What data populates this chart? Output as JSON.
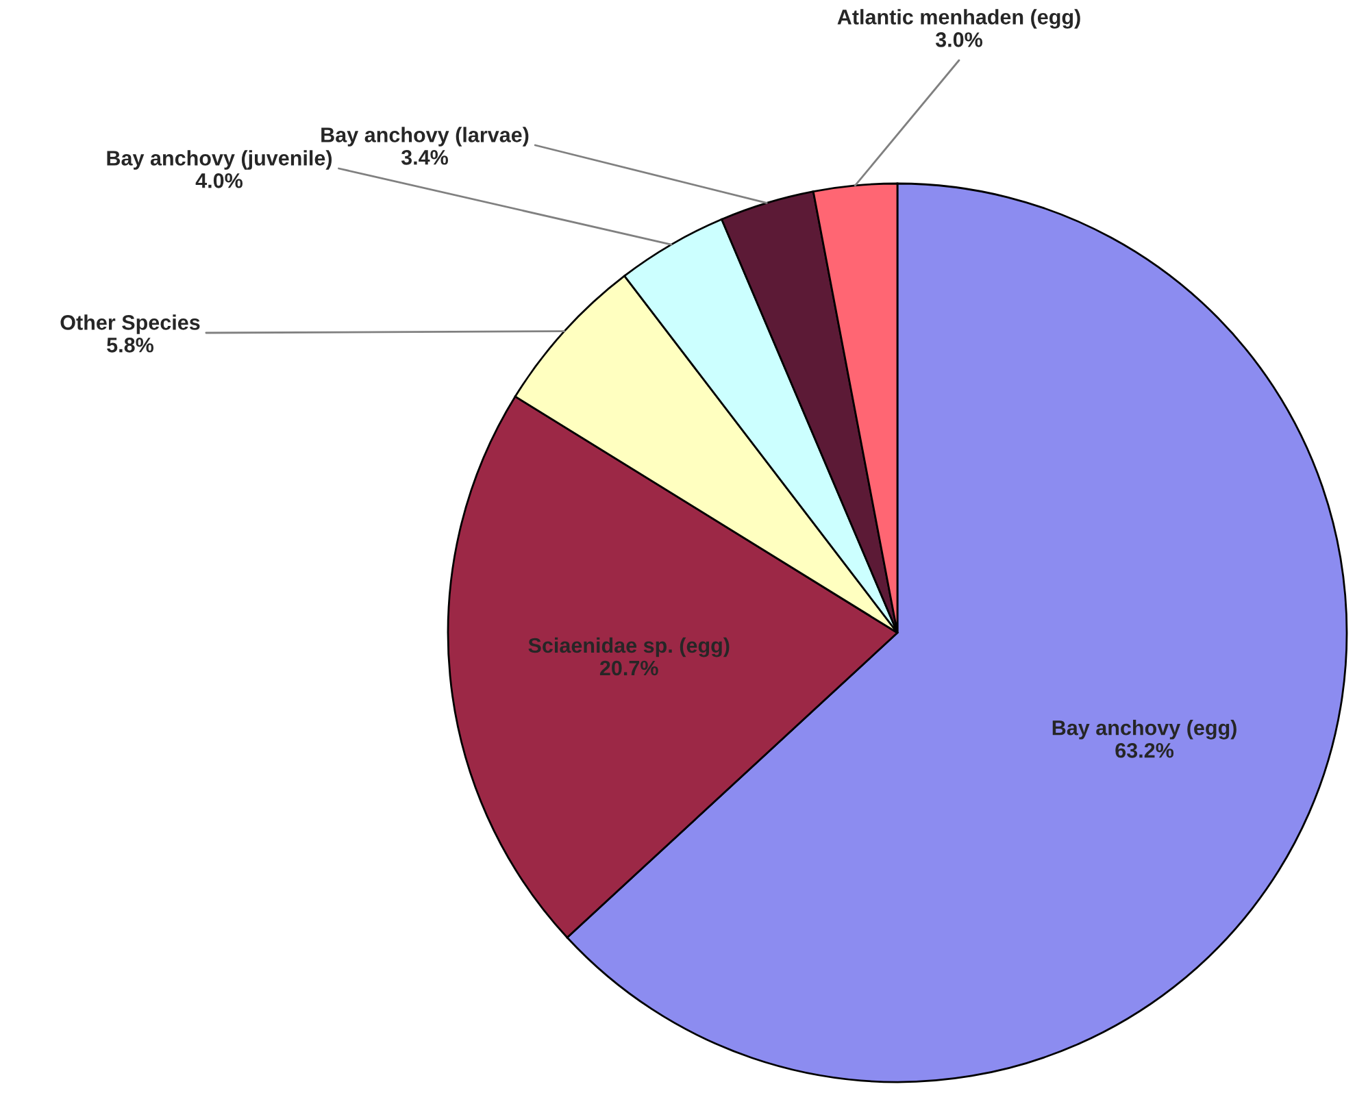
{
  "chart_data": {
    "type": "pie",
    "categories": [
      "Bay anchovy (egg)",
      "Sciaenidae sp. (egg)",
      "Other Species",
      "Bay anchovy (juvenile)",
      "Bay anchovy (larvae)",
      "Atlantic menhaden (egg)"
    ],
    "values": [
      63.2,
      20.7,
      5.8,
      4.0,
      3.4,
      3.0
    ],
    "colors": [
      "#8c8cf0",
      "#9c2846",
      "#ffffc0",
      "#ccffff",
      "#5c1a36",
      "#ff6673"
    ],
    "value_labels": [
      "63.2%",
      "20.7%",
      "5.8%",
      "4.0%",
      "3.4%",
      "3.0%"
    ],
    "legend": false
  }
}
